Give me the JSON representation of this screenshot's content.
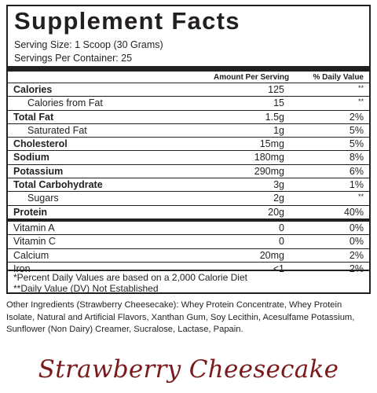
{
  "label": {
    "title": "Supplement Facts",
    "serving_size": "Serving Size: 1 Scoop (30 Grams)",
    "servings_per_container": "Servings Per Container: 25",
    "header_amount": "Amount Per Serving",
    "header_dv": "% Daily Value",
    "rows": [
      {
        "name": "Calories",
        "amount": "125",
        "dv": "**"
      },
      {
        "name": "Calories from Fat",
        "amount": "15",
        "dv": "**"
      },
      {
        "name": "Total Fat",
        "amount": "1.5g",
        "dv": "2%"
      },
      {
        "name": "Saturated Fat",
        "amount": "1g",
        "dv": "5%"
      },
      {
        "name": "Cholesterol",
        "amount": "15mg",
        "dv": "5%"
      },
      {
        "name": "Sodium",
        "amount": "180mg",
        "dv": "8%"
      },
      {
        "name": "Potassium",
        "amount": "290mg",
        "dv": "6%"
      },
      {
        "name": "Total Carbohydrate",
        "amount": "3g",
        "dv": "1%"
      },
      {
        "name": "Sugars",
        "amount": "2g",
        "dv": "**"
      },
      {
        "name": "Protein",
        "amount": "20g",
        "dv": "40%"
      },
      {
        "name": "Vitamin A",
        "amount": "0",
        "dv": "0%"
      },
      {
        "name": "Vitamin C",
        "amount": "0",
        "dv": "0%"
      },
      {
        "name": "Calcium",
        "amount": "20mg",
        "dv": "2%"
      },
      {
        "name": "Iron",
        "amount": "<1",
        "dv": "2%"
      }
    ],
    "footnote_1": "*Percent Daily Values are based on a 2,000 Calorie Diet",
    "footnote_2": "**Daily Value (DV) Not Established"
  },
  "ingredients": "Other Ingredients (Strawberry Cheesecake): Whey Protein Concentrate, Whey Protein Isolate, Natural and Artificial Flavors, Xanthan Gum, Soy Lecithin, Acesulfame Potassium, Sunflower (Non Dairy) Creamer, Sucralose, Lactase, Papain.",
  "flavor_name": "Strawberry Cheesecake",
  "colors": {
    "text": "#231f20",
    "flavor": "#7a1a1c",
    "background": "#ffffff"
  }
}
